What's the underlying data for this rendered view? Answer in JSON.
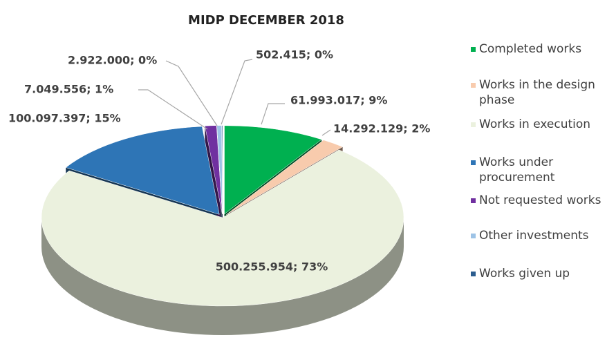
{
  "chart_data": {
    "type": "pie3d",
    "title": "MIDP DECEMBER 2018",
    "series": [
      {
        "name": "Completed works",
        "color": "#00b050",
        "values": [
          61993017
        ],
        "value_labels": [
          "61.993.017; 9%"
        ]
      },
      {
        "name": "Works in the design phase",
        "color": "#f8cbad",
        "values": [
          14292129
        ],
        "value_labels": [
          "14.292.129; 2%"
        ]
      },
      {
        "name": "Works in execution",
        "color": "#ebf1de",
        "values": [
          500255954
        ],
        "value_labels": [
          "500.255.954; 73%"
        ]
      },
      {
        "name": "Works under procurement",
        "color": "#2e75b6",
        "values": [
          100097397
        ],
        "value_labels": [
          "100.097.397; 15%"
        ]
      },
      {
        "name": "Not requested works",
        "color": "#7030a0",
        "values": [
          7049556
        ],
        "value_labels": [
          "7.049.556; 1%"
        ]
      },
      {
        "name": "Other investments",
        "color": "#9dc3e6",
        "values": [
          2922000
        ],
        "value_labels": [
          "2.922.000; 0%"
        ]
      },
      {
        "name": "Works given up",
        "color": "#2c5d8f",
        "values": [
          502415
        ],
        "value_labels": [
          "502.415; 0%"
        ]
      }
    ]
  }
}
